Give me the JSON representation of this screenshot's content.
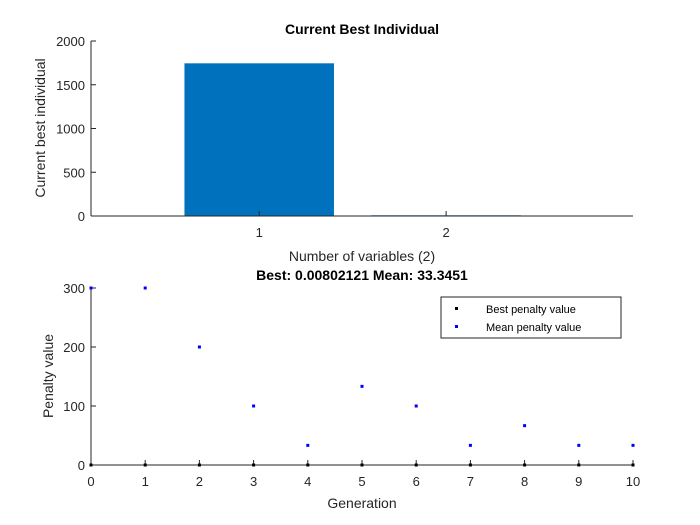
{
  "chart_data": [
    {
      "type": "bar",
      "title": "Current Best Individual",
      "xlabel": "Number of variables (2)",
      "ylabel": "Current best individual",
      "categories": [
        "1",
        "2"
      ],
      "values": [
        1745,
        8
      ],
      "xlim": [
        0.1,
        3.0
      ],
      "ylim": [
        0,
        2000
      ],
      "yticks": [
        0,
        500,
        1000,
        1500,
        2000
      ],
      "bar_color": "#0072BD",
      "grid": false
    },
    {
      "type": "scatter",
      "title": "Best: 0.00802121 Mean: 33.3451",
      "xlabel": "Generation",
      "ylabel": "Penalty value",
      "xlim": [
        0,
        10
      ],
      "ylim": [
        0,
        300
      ],
      "xticks": [
        0,
        1,
        2,
        3,
        4,
        5,
        6,
        7,
        8,
        9,
        10
      ],
      "yticks": [
        0,
        100,
        200,
        300
      ],
      "legend_position": "top-right",
      "grid": false,
      "series": [
        {
          "name": "Best penalty value",
          "color": "#000000",
          "x": [
            0,
            1,
            2,
            3,
            4,
            5,
            6,
            7,
            8,
            9,
            10
          ],
          "y": [
            0,
            0,
            0,
            0,
            0,
            0,
            0,
            0,
            0,
            0,
            0
          ]
        },
        {
          "name": "Mean penalty value",
          "color": "#0000ff",
          "x": [
            0,
            1,
            2,
            3,
            4,
            5,
            6,
            7,
            8,
            9,
            10
          ],
          "y": [
            300,
            300,
            200,
            100,
            33.3,
            133.3,
            100,
            33.3,
            66.7,
            33.3,
            33.3
          ]
        }
      ]
    }
  ]
}
